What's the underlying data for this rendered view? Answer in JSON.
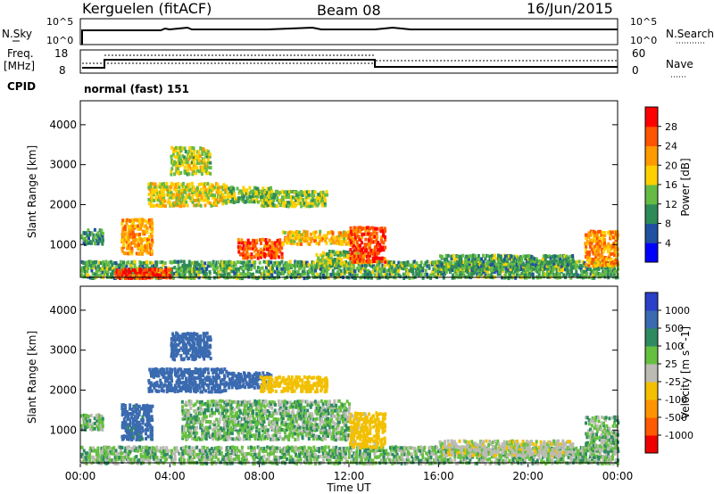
{
  "header": {
    "station": "Kerguelen (fitACF)",
    "beam": "Beam 08",
    "date": "16/Jun/2015"
  },
  "top_panel": {
    "nsky_label": "N.Sky",
    "nsky_ticks": [
      "10^5",
      "10^0"
    ],
    "nsearch_label": "N.Search",
    "nsearch_ticks": [
      "10^5",
      "10^0"
    ],
    "freq_label": "Freq.",
    "freq_unit": "[MHz]",
    "freq_ticks": [
      "18",
      "8"
    ],
    "nave_label": "Nave",
    "nave_ticks": [
      "60",
      "0"
    ],
    "cpid_label": "CPID",
    "cpid_value": "normal (fast) 151"
  },
  "x_axis": {
    "title": "Time UT",
    "ticks": [
      "00:00",
      "04:00",
      "08:00",
      "12:00",
      "16:00",
      "20:00",
      "00:00"
    ]
  },
  "colors": {
    "power_scale": [
      "#0000ff",
      "#2050a0",
      "#2e8b57",
      "#66bb44",
      "#ffd000",
      "#ff9a00",
      "#ff5500",
      "#ff0000"
    ],
    "velocity_scale": [
      "#2a40c8",
      "#3a6ab0",
      "#2f8a60",
      "#66c040",
      "#bbbbb4",
      "#f2c000",
      "#ff9400",
      "#ff5a00",
      "#ee0000"
    ]
  },
  "chart_data": [
    {
      "type": "heatmap",
      "title": "",
      "quantity": "Power",
      "xlabel": "Time UT",
      "ylabel": "Slant Range [km]",
      "xlim": [
        0,
        24
      ],
      "ylim": [
        180,
        4600
      ],
      "yticks": [
        "1000",
        "2000",
        "3000",
        "4000"
      ],
      "colorbar": {
        "label": "Power [dB]",
        "ticks": [
          "4",
          "8",
          "12",
          "16",
          "20",
          "24",
          "28"
        ],
        "range": [
          0,
          32
        ]
      },
      "regions": [
        {
          "t_start": 0.0,
          "t_end": 24.0,
          "r_start": 200,
          "r_end": 650,
          "level": 12
        },
        {
          "t_start": 0.0,
          "t_end": 1.0,
          "r_start": 1050,
          "r_end": 1450,
          "level": 10
        },
        {
          "t_start": 1.8,
          "t_end": 3.2,
          "r_start": 800,
          "r_end": 1700,
          "level": 22
        },
        {
          "t_start": 3.0,
          "t_end": 6.5,
          "r_start": 2000,
          "r_end": 2600,
          "level": 18
        },
        {
          "t_start": 4.0,
          "t_end": 5.8,
          "r_start": 2800,
          "r_end": 3500,
          "level": 16
        },
        {
          "t_start": 6.5,
          "t_end": 8.5,
          "r_start": 2100,
          "r_end": 2500,
          "level": 14
        },
        {
          "t_start": 8.0,
          "t_end": 11.0,
          "r_start": 2000,
          "r_end": 2400,
          "level": 15
        },
        {
          "t_start": 7.0,
          "t_end": 9.0,
          "r_start": 700,
          "r_end": 1200,
          "level": 26
        },
        {
          "t_start": 9.0,
          "t_end": 12.0,
          "r_start": 1050,
          "r_end": 1400,
          "level": 20
        },
        {
          "t_start": 10.5,
          "t_end": 12.5,
          "r_start": 500,
          "r_end": 900,
          "level": 14
        },
        {
          "t_start": 12.0,
          "t_end": 13.6,
          "r_start": 600,
          "r_end": 1500,
          "level": 27
        },
        {
          "t_start": 22.5,
          "t_end": 24.0,
          "r_start": 500,
          "r_end": 1400,
          "level": 22
        },
        {
          "t_start": 16.0,
          "t_end": 22.0,
          "r_start": 400,
          "r_end": 800,
          "level": 12
        },
        {
          "t_start": 1.5,
          "t_end": 4.0,
          "r_start": 200,
          "r_end": 450,
          "level": 28
        }
      ]
    },
    {
      "type": "heatmap",
      "title": "",
      "quantity": "Velocity",
      "xlabel": "Time UT",
      "ylabel": "Slant Range [km]",
      "xlim": [
        0,
        24
      ],
      "ylim": [
        180,
        4600
      ],
      "yticks": [
        "1000",
        "2000",
        "3000",
        "4000"
      ],
      "colorbar": {
        "label": "Velocity [m s^-1]",
        "ticks": [
          "1000",
          "500",
          "100",
          "25",
          "-25",
          "-100",
          "-500",
          "-1000"
        ],
        "range": [
          -1000,
          1000
        ]
      },
      "regions": [
        {
          "t_start": 0.0,
          "t_end": 24.0,
          "r_start": 200,
          "r_end": 650,
          "level": 0
        },
        {
          "t_start": 0.0,
          "t_end": 1.0,
          "r_start": 1050,
          "r_end": 1450,
          "level": 0
        },
        {
          "t_start": 1.8,
          "t_end": 3.2,
          "r_start": 800,
          "r_end": 1700,
          "level": 150
        },
        {
          "t_start": 3.0,
          "t_end": 6.5,
          "r_start": 2000,
          "r_end": 2600,
          "level": 400
        },
        {
          "t_start": 4.0,
          "t_end": 5.8,
          "r_start": 2800,
          "r_end": 3500,
          "level": 300
        },
        {
          "t_start": 6.5,
          "t_end": 8.5,
          "r_start": 2100,
          "r_end": 2500,
          "level": 200
        },
        {
          "t_start": 8.0,
          "t_end": 11.0,
          "r_start": 2000,
          "r_end": 2400,
          "level": -200
        },
        {
          "t_start": 4.5,
          "t_end": 12.0,
          "r_start": 800,
          "r_end": 1800,
          "level": 0
        },
        {
          "t_start": 12.0,
          "t_end": 13.6,
          "r_start": 600,
          "r_end": 1500,
          "level": -150
        },
        {
          "t_start": 22.5,
          "t_end": 24.0,
          "r_start": 500,
          "r_end": 1400,
          "level": 0
        },
        {
          "t_start": 16.0,
          "t_end": 22.0,
          "r_start": 400,
          "r_end": 800,
          "level": -60
        }
      ]
    }
  ]
}
